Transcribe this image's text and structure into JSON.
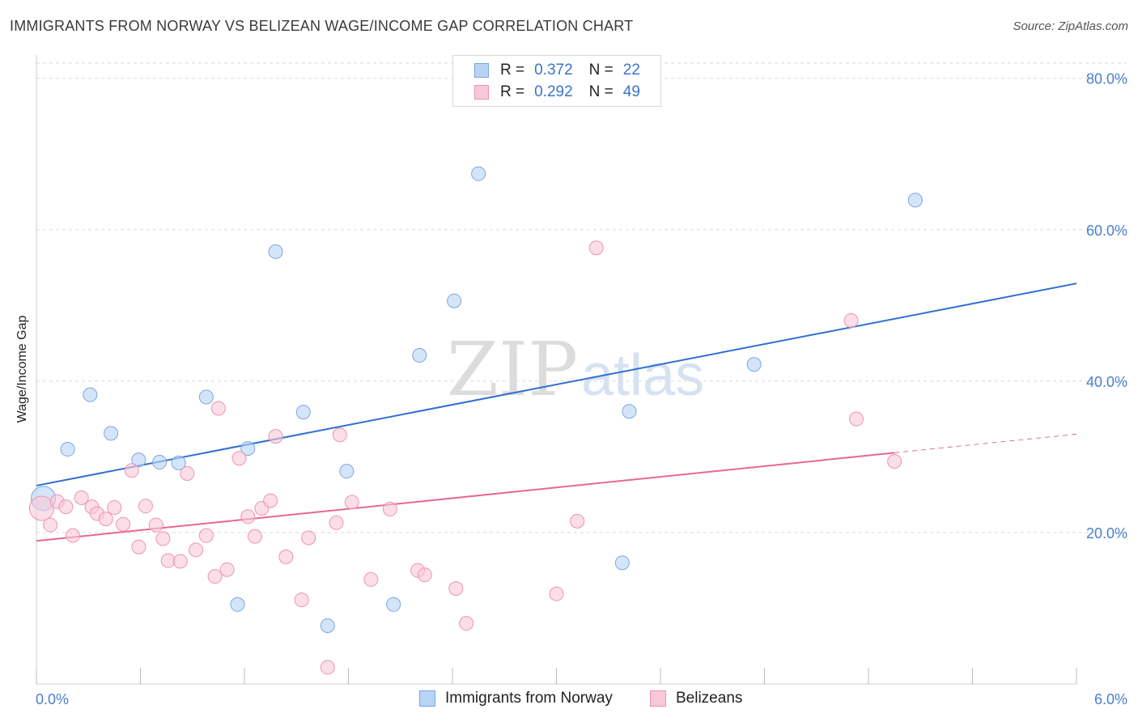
{
  "header": {
    "title": "IMMIGRANTS FROM NORWAY VS BELIZEAN WAGE/INCOME GAP CORRELATION CHART",
    "source": "Source: ZipAtlas.com"
  },
  "legend": {
    "r_label": "R =",
    "n_label": "N =",
    "series": [
      {
        "r": "0.372",
        "n": "22"
      },
      {
        "r": "0.292",
        "n": "49"
      }
    ]
  },
  "watermark": {
    "zip": "ZIP",
    "atlas": "atlas"
  },
  "colors": {
    "blue_fill": "#b9d3f5",
    "blue_stroke": "#7aa6e0",
    "blue_line": "#2f6fd0",
    "pink_fill": "#f9c8d8",
    "pink_stroke": "#ee94b0",
    "pink_line": "#e8688f",
    "grid": "#d9d9d9",
    "axis_label": "#4a7fcf"
  },
  "chart_data": {
    "type": "scatter",
    "title": "IMMIGRANTS FROM NORWAY VS BELIZEAN WAGE/INCOME GAP CORRELATION CHART",
    "xlabel": "",
    "ylabel": "Wage/Income Gap",
    "xlim": [
      0.0,
      6.0
    ],
    "ylim": [
      0.0,
      82.0
    ],
    "x_tick_labels": [
      "0.0%",
      "6.0%"
    ],
    "y_ticks": [
      20,
      40,
      60,
      80
    ],
    "y_tick_labels": [
      "20.0%",
      "40.0%",
      "60.0%",
      "80.0%"
    ],
    "grid": true,
    "series": [
      {
        "name": "Immigrants from Norway",
        "color": "blue",
        "r": 0.372,
        "n": 22,
        "trend": {
          "x0": 0.0,
          "y0": 26.2,
          "x1": 6.0,
          "y1": 52.9,
          "dashed_from": null
        },
        "points": [
          {
            "x": 0.04,
            "y": 24.5,
            "size": "large"
          },
          {
            "x": 0.18,
            "y": 31.0
          },
          {
            "x": 0.31,
            "y": 38.2
          },
          {
            "x": 0.43,
            "y": 33.1
          },
          {
            "x": 0.59,
            "y": 29.6
          },
          {
            "x": 0.71,
            "y": 29.3
          },
          {
            "x": 0.82,
            "y": 29.2
          },
          {
            "x": 0.98,
            "y": 37.9
          },
          {
            "x": 1.16,
            "y": 10.5
          },
          {
            "x": 1.22,
            "y": 31.1
          },
          {
            "x": 1.38,
            "y": 57.1
          },
          {
            "x": 1.54,
            "y": 35.9
          },
          {
            "x": 1.68,
            "y": 7.7
          },
          {
            "x": 1.79,
            "y": 28.1
          },
          {
            "x": 2.06,
            "y": 10.5
          },
          {
            "x": 2.21,
            "y": 43.4
          },
          {
            "x": 2.41,
            "y": 50.6
          },
          {
            "x": 2.55,
            "y": 67.4
          },
          {
            "x": 3.38,
            "y": 16.0
          },
          {
            "x": 3.42,
            "y": 36.0
          },
          {
            "x": 4.14,
            "y": 42.2
          },
          {
            "x": 5.07,
            "y": 63.9
          }
        ]
      },
      {
        "name": "Belizeans",
        "color": "pink",
        "r": 0.292,
        "n": 49,
        "trend": {
          "x0": 0.0,
          "y0": 18.9,
          "x1": 6.0,
          "y1": 33.0,
          "dashed_from": 4.95
        },
        "points": [
          {
            "x": 0.03,
            "y": 23.2,
            "size": "large"
          },
          {
            "x": 0.08,
            "y": 21.0
          },
          {
            "x": 0.12,
            "y": 24.1
          },
          {
            "x": 0.17,
            "y": 23.4
          },
          {
            "x": 0.21,
            "y": 19.6
          },
          {
            "x": 0.26,
            "y": 24.6
          },
          {
            "x": 0.32,
            "y": 23.4
          },
          {
            "x": 0.35,
            "y": 22.5
          },
          {
            "x": 0.4,
            "y": 21.8
          },
          {
            "x": 0.45,
            "y": 23.3
          },
          {
            "x": 0.5,
            "y": 21.1
          },
          {
            "x": 0.55,
            "y": 28.2
          },
          {
            "x": 0.59,
            "y": 18.1
          },
          {
            "x": 0.63,
            "y": 23.5
          },
          {
            "x": 0.69,
            "y": 21.0
          },
          {
            "x": 0.73,
            "y": 19.2
          },
          {
            "x": 0.76,
            "y": 16.3
          },
          {
            "x": 0.83,
            "y": 16.2
          },
          {
            "x": 0.87,
            "y": 27.8
          },
          {
            "x": 0.92,
            "y": 17.7
          },
          {
            "x": 0.98,
            "y": 19.6
          },
          {
            "x": 1.03,
            "y": 14.2
          },
          {
            "x": 1.05,
            "y": 36.4
          },
          {
            "x": 1.1,
            "y": 15.1
          },
          {
            "x": 1.17,
            "y": 29.8
          },
          {
            "x": 1.22,
            "y": 22.1
          },
          {
            "x": 1.26,
            "y": 19.5
          },
          {
            "x": 1.3,
            "y": 23.2
          },
          {
            "x": 1.35,
            "y": 24.2
          },
          {
            "x": 1.38,
            "y": 32.7
          },
          {
            "x": 1.44,
            "y": 16.8
          },
          {
            "x": 1.53,
            "y": 11.1
          },
          {
            "x": 1.57,
            "y": 19.3
          },
          {
            "x": 1.68,
            "y": 2.2
          },
          {
            "x": 1.73,
            "y": 21.3
          },
          {
            "x": 1.75,
            "y": 32.9
          },
          {
            "x": 1.82,
            "y": 24.0
          },
          {
            "x": 1.93,
            "y": 13.8
          },
          {
            "x": 2.04,
            "y": 23.1
          },
          {
            "x": 2.2,
            "y": 15.0
          },
          {
            "x": 2.24,
            "y": 14.4
          },
          {
            "x": 2.42,
            "y": 12.6
          },
          {
            "x": 2.48,
            "y": 8.0
          },
          {
            "x": 3.0,
            "y": 11.9
          },
          {
            "x": 3.12,
            "y": 21.5
          },
          {
            "x": 3.23,
            "y": 57.6
          },
          {
            "x": 4.7,
            "y": 48.0
          },
          {
            "x": 4.73,
            "y": 35.0
          },
          {
            "x": 4.95,
            "y": 29.4
          }
        ]
      }
    ]
  }
}
